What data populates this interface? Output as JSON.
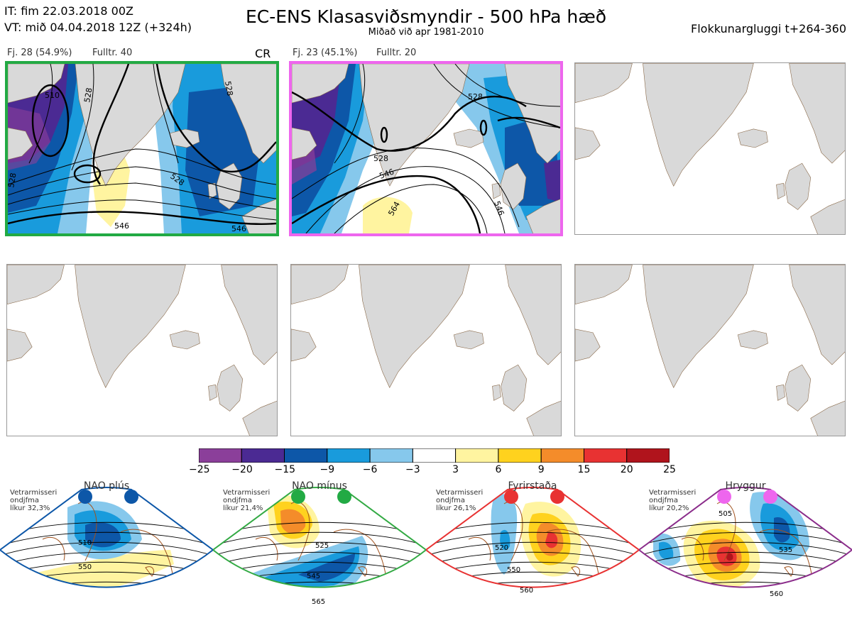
{
  "header": {
    "it_line": "IT: fim 22.03.2018 00Z",
    "vt_line": "VT: mið 04.04.2018 12Z  (+324h)",
    "title": "EC-ENS Klasasviðsmyndir - 500 hPa hæð",
    "subtitle": "Miðað við apr 1981-2010",
    "window": "Flokkunargluggi t+264-360"
  },
  "panels": [
    {
      "count_label": "Fj. 28 (54.9%)",
      "rep_label": "Fulltr. 40",
      "tag": "CR",
      "border": "#22aa44",
      "contour_labels": [
        "510",
        "528",
        "546",
        "528",
        "546",
        "528",
        "528"
      ]
    },
    {
      "count_label": "Fj. 23 (45.1%)",
      "rep_label": "Fulltr. 20",
      "tag": "",
      "border": "#ee66ee",
      "contour_labels": [
        "528",
        "546",
        "528",
        "564",
        "546"
      ]
    }
  ],
  "colorbar": {
    "ticks": [
      "−25",
      "−20",
      "−15",
      "−9",
      "−6",
      "−3",
      "3",
      "6",
      "9",
      "15",
      "20",
      "25"
    ],
    "colors": [
      "#8b3f9a",
      "#4b2a93",
      "#0d57a8",
      "#199bdc",
      "#86c8ec",
      "#ffffff",
      "#fff4a0",
      "#ffd21e",
      "#f48c2a",
      "#e83232",
      "#b0141c"
    ]
  },
  "regimes": [
    {
      "name": "NAO plús",
      "lines": [
        "Vetrarmisseri",
        "ondjfma",
        "líkur 32,3%"
      ],
      "color": "#0d57a8",
      "border": "#0d57a8",
      "labels": [
        "510",
        "550"
      ]
    },
    {
      "name": "NAO mínus",
      "lines": [
        "Vetrarmisseri",
        "ondjfma",
        "líkur 21,4%"
      ],
      "color": "#22aa44",
      "border": "#33aa44",
      "labels": [
        "525",
        "545",
        "565"
      ]
    },
    {
      "name": "Fyrirstaða",
      "lines": [
        "Vetrarmisseri",
        "ondjfma",
        "líkur 26,1%"
      ],
      "color": "#e83232",
      "border": "#e83232",
      "labels": [
        "520",
        "550",
        "560"
      ]
    },
    {
      "name": "Hryggur",
      "lines": [
        "Vetrarmisseri",
        "ondjfma",
        "líkur 20,2%"
      ],
      "color": "#ee66ee",
      "border": "#8b2d8b",
      "labels": [
        "505",
        "535",
        "560"
      ]
    }
  ]
}
